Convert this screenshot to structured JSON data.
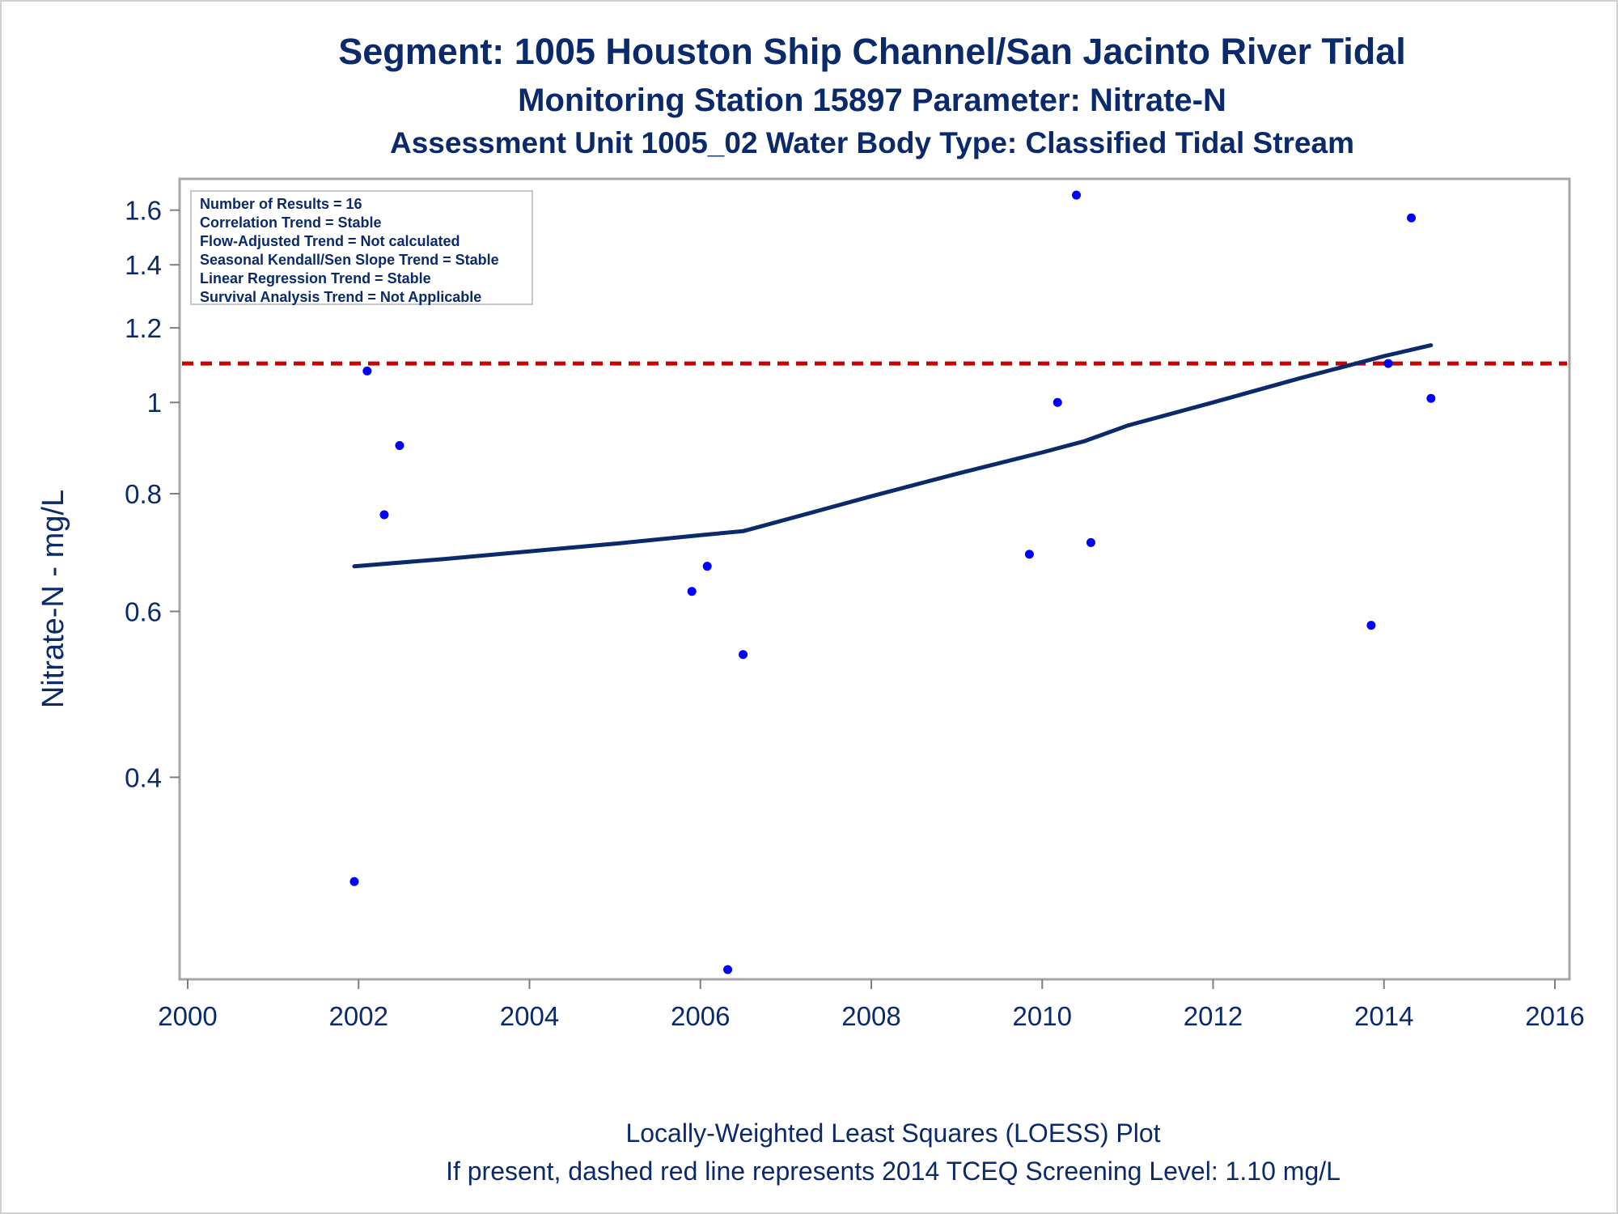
{
  "chart_data": {
    "type": "scatter",
    "title": "Segment: 1005  Houston Ship Channel/San Jacinto River Tidal",
    "subtitle_1": "Monitoring Station 15897 Parameter: Nitrate-N",
    "subtitle_2": "Assessment Unit 1005_02   Water Body Type: Classified Tidal Stream",
    "xlabel": "",
    "ylabel": "Nitrate-N - mg/L",
    "y_scale": "log",
    "xlim": [
      2000,
      2016
    ],
    "ylim": [
      0.25,
      1.68
    ],
    "x_ticks": [
      2000,
      2002,
      2004,
      2006,
      2008,
      2010,
      2012,
      2014,
      2016
    ],
    "y_ticks": [
      0.4,
      0.6,
      0.8,
      1,
      1.2,
      1.4,
      1.6
    ],
    "y_tick_labels": [
      "0.4",
      "0.6",
      "0.8",
      "1",
      "1.2",
      "1.4",
      "1.6"
    ],
    "grid": false,
    "legend": {
      "placement": "top-left",
      "entries": [
        "Number of Results = 16",
        "Correlation Trend = Stable",
        "Flow-Adjusted Trend = Not calculated",
        "Seasonal Kendall/Sen Slope Trend = Stable",
        "Linear Regression Trend = Stable",
        "Survival Analysis Trend = Not Applicable"
      ]
    },
    "series": [
      {
        "type": "scatter",
        "color": "#0000ff",
        "x": [
          2001.95,
          2002.1,
          2002.3,
          2002.48,
          2005.9,
          2006.08,
          2006.32,
          2006.5,
          2009.85,
          2010.18,
          2010.4,
          2010.57,
          2013.85,
          2014.05,
          2014.32,
          2014.55
        ],
        "y": [
          0.31,
          1.08,
          0.76,
          0.9,
          0.63,
          0.67,
          0.25,
          0.54,
          0.69,
          1.0,
          1.66,
          0.71,
          0.58,
          1.1,
          1.57,
          1.01
        ]
      },
      {
        "type": "line",
        "color": "#0b2a6b",
        "x": [
          2001.95,
          2003.0,
          2004.0,
          2005.0,
          2006.0,
          2006.5,
          2007.0,
          2008.0,
          2009.0,
          2010.0,
          2010.5,
          2011.0,
          2012.0,
          2013.0,
          2014.0,
          2014.55
        ],
        "y": [
          0.67,
          0.682,
          0.695,
          0.708,
          0.723,
          0.73,
          0.751,
          0.795,
          0.84,
          0.885,
          0.91,
          0.945,
          1.0,
          1.06,
          1.12,
          1.15
        ]
      }
    ],
    "reference_line": {
      "y": 1.1,
      "color": "#cc0000",
      "style": "dashed"
    },
    "footnote_1": "Locally-Weighted Least Squares (LOESS) Plot",
    "footnote_2": "If present, dashed red line represents 2014 TCEQ Screening Level: 1.10 mg/L"
  }
}
